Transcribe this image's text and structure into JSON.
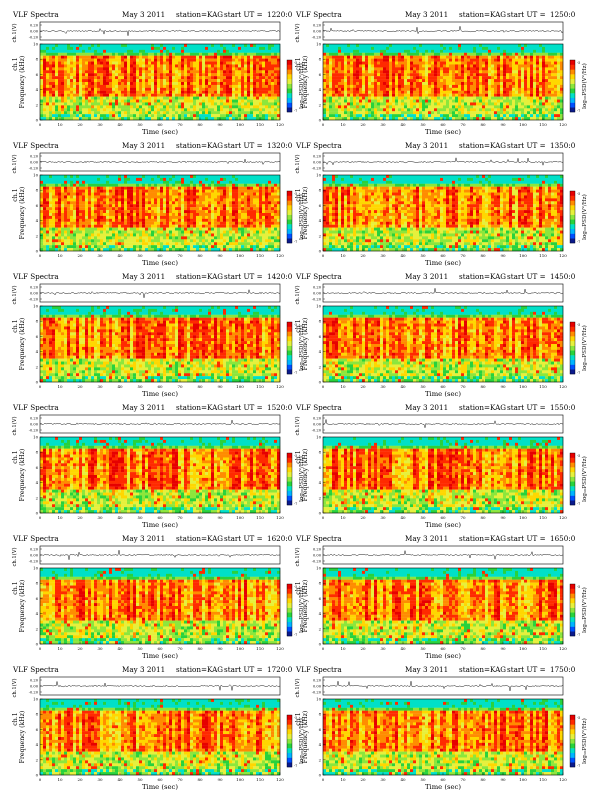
{
  "colors": {
    "scale": [
      "#0a1a8c",
      "#0050ff",
      "#00b4ff",
      "#00e0c8",
      "#28d23c",
      "#8ce63c",
      "#e6f03c",
      "#ffd700",
      "#ff8c00",
      "#ff2a00",
      "#e60000"
    ],
    "background_band": "#28dcd2",
    "axis": "#000000",
    "trace": "#000000"
  },
  "common": {
    "left_title": "VLF Spectra",
    "date": "May 3 2011",
    "station": "station=KAG",
    "start_label": "start  UT  =",
    "trace_ylabel": "ch.1(V)",
    "trace_ticks": [
      "0.20",
      "0.00",
      "-0.20"
    ],
    "spec_ylabel_top": "ch.1",
    "spec_ylabel": "Frequency  (kHz)",
    "freq_ticks": [
      "0",
      "2",
      "4",
      "6",
      "8",
      "10"
    ],
    "time_ticks": [
      "0",
      "10",
      "20",
      "30",
      "40",
      "50",
      "60",
      "70",
      "80",
      "90",
      "100",
      "110",
      "120"
    ],
    "xlabel": "Time  (sec)",
    "colorbar_label": "log₁₀PSD(V²/Hz)",
    "colorbar_ticks": [
      "-5",
      "-7"
    ]
  },
  "panels": [
    {
      "start_ut": "1220:0"
    },
    {
      "start_ut": "1250:0"
    },
    {
      "start_ut": "1320:0"
    },
    {
      "start_ut": "1350:0"
    },
    {
      "start_ut": "1420:0"
    },
    {
      "start_ut": "1450:0"
    },
    {
      "start_ut": "1520:0"
    },
    {
      "start_ut": "1550:0"
    },
    {
      "start_ut": "1620:0"
    },
    {
      "start_ut": "1650:0"
    },
    {
      "start_ut": "1720:0"
    },
    {
      "start_ut": "1750:0"
    }
  ],
  "chart_data": {
    "type": "heatmap",
    "x_unit": "sec",
    "xlim": [
      0,
      120
    ],
    "y_unit": "kHz",
    "ylim": [
      0,
      10
    ],
    "trace_ylim": [
      -0.2,
      0.2
    ],
    "colorbar_range": [
      -7,
      -5
    ],
    "panel_count": 12,
    "layout": "6 rows x 2 columns"
  }
}
